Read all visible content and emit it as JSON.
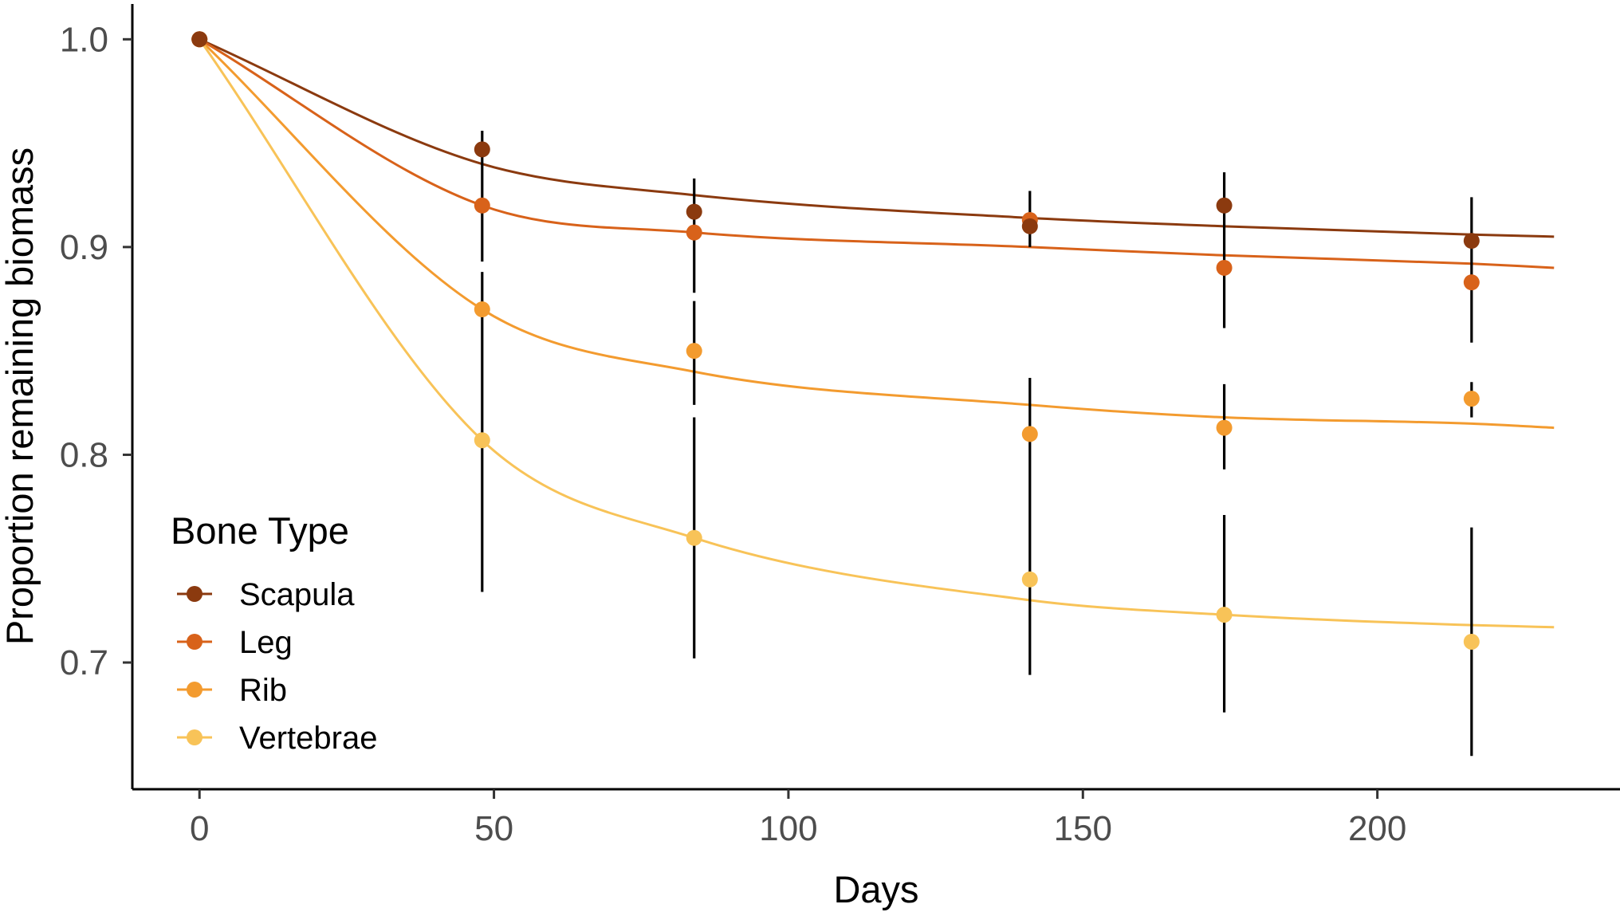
{
  "chart_data": {
    "type": "line",
    "title": "",
    "xlabel": "Days",
    "ylabel": "Proportion remaining biomass",
    "xlim": [
      -11.4,
      241.2
    ],
    "ylim": [
      0.639,
      1.017
    ],
    "x_ticks": [
      0,
      50,
      100,
      150,
      200
    ],
    "x_tick_labels": [
      "0",
      "50",
      "100",
      "150",
      "200"
    ],
    "y_ticks": [
      0.7,
      0.8,
      0.9,
      1.0
    ],
    "y_tick_labels": [
      "0.7",
      "0.8",
      "0.9",
      "1.0"
    ],
    "grid": false,
    "legend": {
      "title": "Bone Type",
      "position": "bottom-left inside"
    },
    "x": [
      0,
      48,
      84,
      141,
      174,
      216
    ],
    "fit_x_max": 230,
    "series": [
      {
        "name": "Scapula",
        "color": "#8B3A0F",
        "values": [
          1.0,
          0.947,
          0.917,
          0.91,
          0.92,
          0.903
        ],
        "fit_points": [
          [
            0,
            1.0
          ],
          [
            48,
            0.94
          ],
          [
            84,
            0.925
          ],
          [
            141,
            0.914
          ],
          [
            174,
            0.91
          ],
          [
            216,
            0.906
          ],
          [
            230,
            0.905
          ]
        ]
      },
      {
        "name": "Leg",
        "color": "#D8621A",
        "values": [
          1.0,
          0.92,
          0.907,
          0.913,
          0.89,
          0.883
        ],
        "fit_points": [
          [
            0,
            1.0
          ],
          [
            48,
            0.92
          ],
          [
            84,
            0.907
          ],
          [
            141,
            0.9
          ],
          [
            174,
            0.896
          ],
          [
            216,
            0.892
          ],
          [
            230,
            0.89
          ]
        ]
      },
      {
        "name": "Rib",
        "color": "#F39B2F",
        "values": [
          1.0,
          0.87,
          0.85,
          0.81,
          0.813,
          0.827
        ],
        "fit_points": [
          [
            0,
            1.0
          ],
          [
            48,
            0.87
          ],
          [
            84,
            0.84
          ],
          [
            141,
            0.824
          ],
          [
            174,
            0.818
          ],
          [
            216,
            0.815
          ],
          [
            230,
            0.813
          ]
        ]
      },
      {
        "name": "Vertebrae",
        "color": "#F8C358",
        "values": [
          1.0,
          0.807,
          0.76,
          0.74,
          0.723,
          0.71
        ],
        "fit_points": [
          [
            0,
            1.0
          ],
          [
            48,
            0.807
          ],
          [
            84,
            0.76
          ],
          [
            141,
            0.73
          ],
          [
            174,
            0.723
          ],
          [
            216,
            0.718
          ],
          [
            230,
            0.717
          ]
        ]
      }
    ],
    "error_bars": [
      {
        "x": 48,
        "segments": [
          [
            0.956,
            0.893
          ],
          [
            0.888,
            0.734
          ]
        ]
      },
      {
        "x": 84,
        "segments": [
          [
            0.933,
            0.878
          ],
          [
            0.874,
            0.824
          ],
          [
            0.818,
            0.702
          ]
        ]
      },
      {
        "x": 141,
        "segments": [
          [
            0.927,
            0.9
          ],
          [
            0.837,
            0.694
          ]
        ]
      },
      {
        "x": 174,
        "segments": [
          [
            0.936,
            0.861
          ],
          [
            0.834,
            0.793
          ],
          [
            0.771,
            0.676
          ]
        ]
      },
      {
        "x": 216,
        "segments": [
          [
            0.924,
            0.854
          ],
          [
            0.835,
            0.818
          ],
          [
            0.765,
            0.655
          ]
        ]
      }
    ]
  }
}
